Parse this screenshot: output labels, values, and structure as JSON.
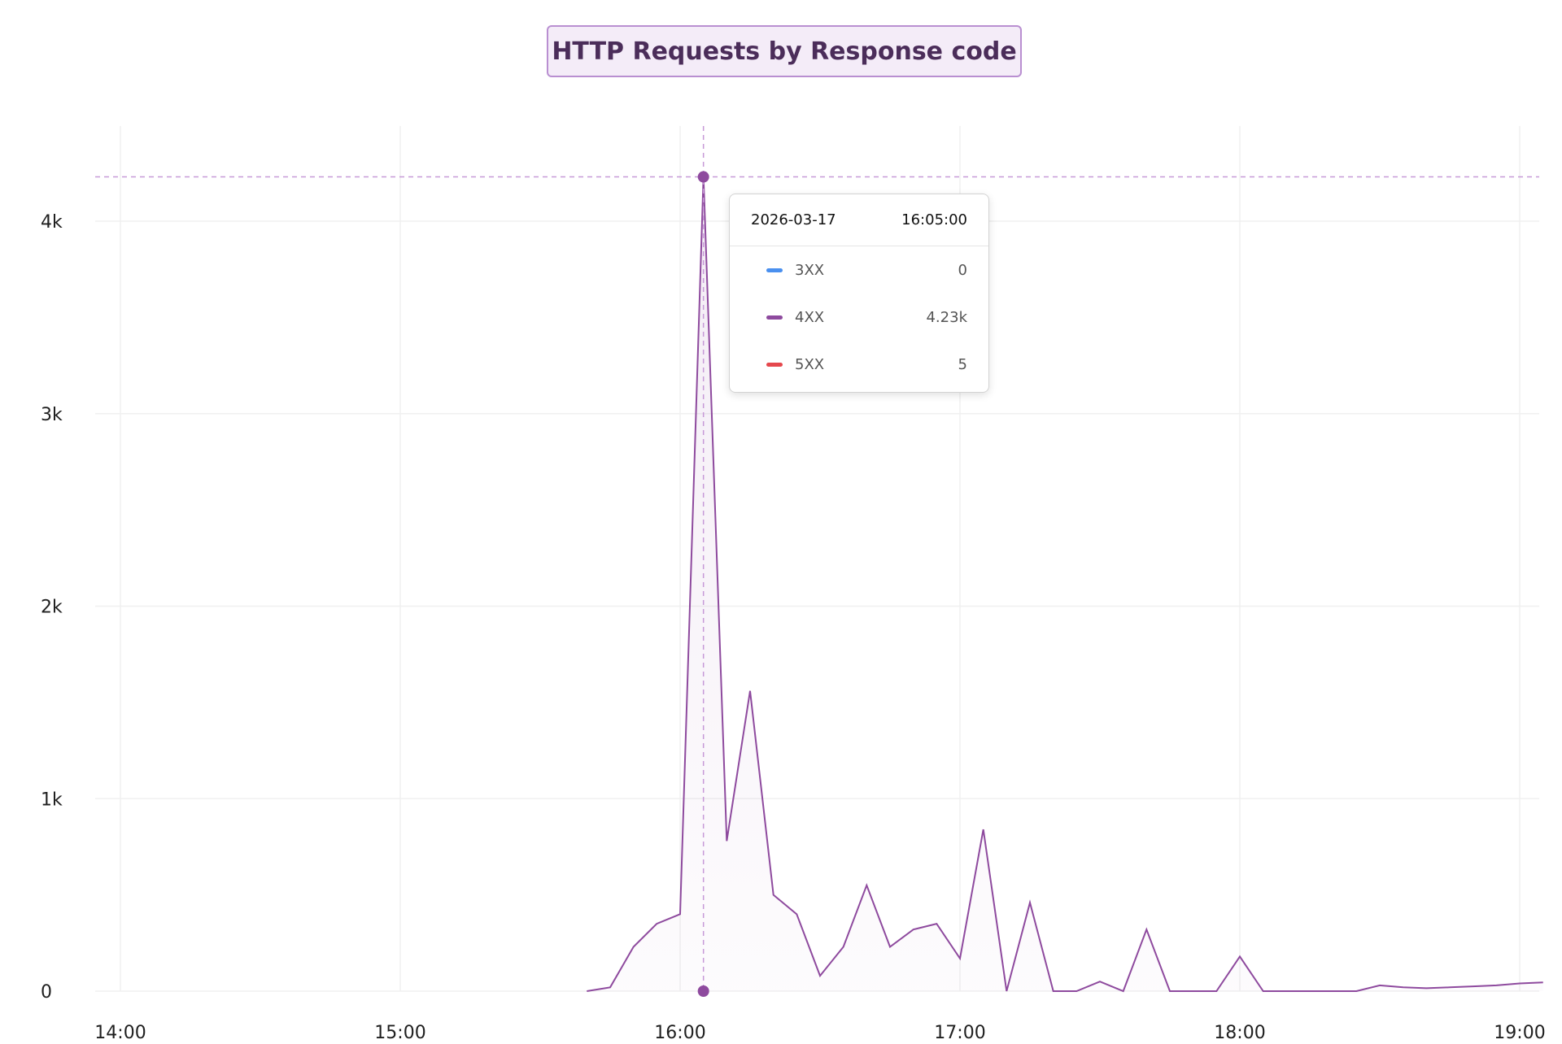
{
  "chart_data": {
    "type": "area",
    "title": "HTTP Requests by Response code",
    "xlabel": "",
    "ylabel": "",
    "x_ticks": [
      "14:00",
      "15:00",
      "16:00",
      "17:00",
      "18:00",
      "19:00"
    ],
    "y_ticks": [
      "0",
      "1k",
      "2k",
      "3k",
      "4k"
    ],
    "xlim": [
      "13:55",
      "19:05"
    ],
    "ylim": [
      0,
      4500
    ],
    "grid": true,
    "series": [
      {
        "name": "4XX",
        "color": "#8e4a9e",
        "x": [
          "15:40",
          "15:45",
          "15:50",
          "15:55",
          "16:00",
          "16:05",
          "16:10",
          "16:15",
          "16:20",
          "16:25",
          "16:30",
          "16:35",
          "16:40",
          "16:45",
          "16:50",
          "16:55",
          "17:00",
          "17:05",
          "17:10",
          "17:15",
          "17:20",
          "17:25",
          "17:30",
          "17:35",
          "17:40",
          "17:45",
          "17:50",
          "17:55",
          "18:00",
          "18:05",
          "18:10",
          "18:15",
          "18:20",
          "18:25",
          "18:30",
          "18:35",
          "18:40",
          "18:45",
          "18:50",
          "18:55",
          "19:00",
          "19:05"
        ],
        "y": [
          0,
          20,
          230,
          350,
          400,
          4230,
          780,
          1560,
          500,
          400,
          80,
          230,
          550,
          230,
          320,
          350,
          170,
          840,
          0,
          460,
          0,
          0,
          50,
          0,
          320,
          0,
          0,
          0,
          180,
          0,
          0,
          0,
          0,
          0,
          30,
          20,
          15,
          20,
          25,
          30,
          40,
          45
        ]
      }
    ],
    "crosshair": {
      "x": "16:05",
      "y": 4230
    }
  },
  "tooltip": {
    "date": "2026-03-17",
    "time": "16:05:00",
    "rows": [
      {
        "name": "3XX",
        "value": "0",
        "color": "#4a90ef"
      },
      {
        "name": "4XX",
        "value": "4.23k",
        "color": "#8e4a9e"
      },
      {
        "name": "5XX",
        "value": "5",
        "color": "#e5484d"
      }
    ]
  }
}
